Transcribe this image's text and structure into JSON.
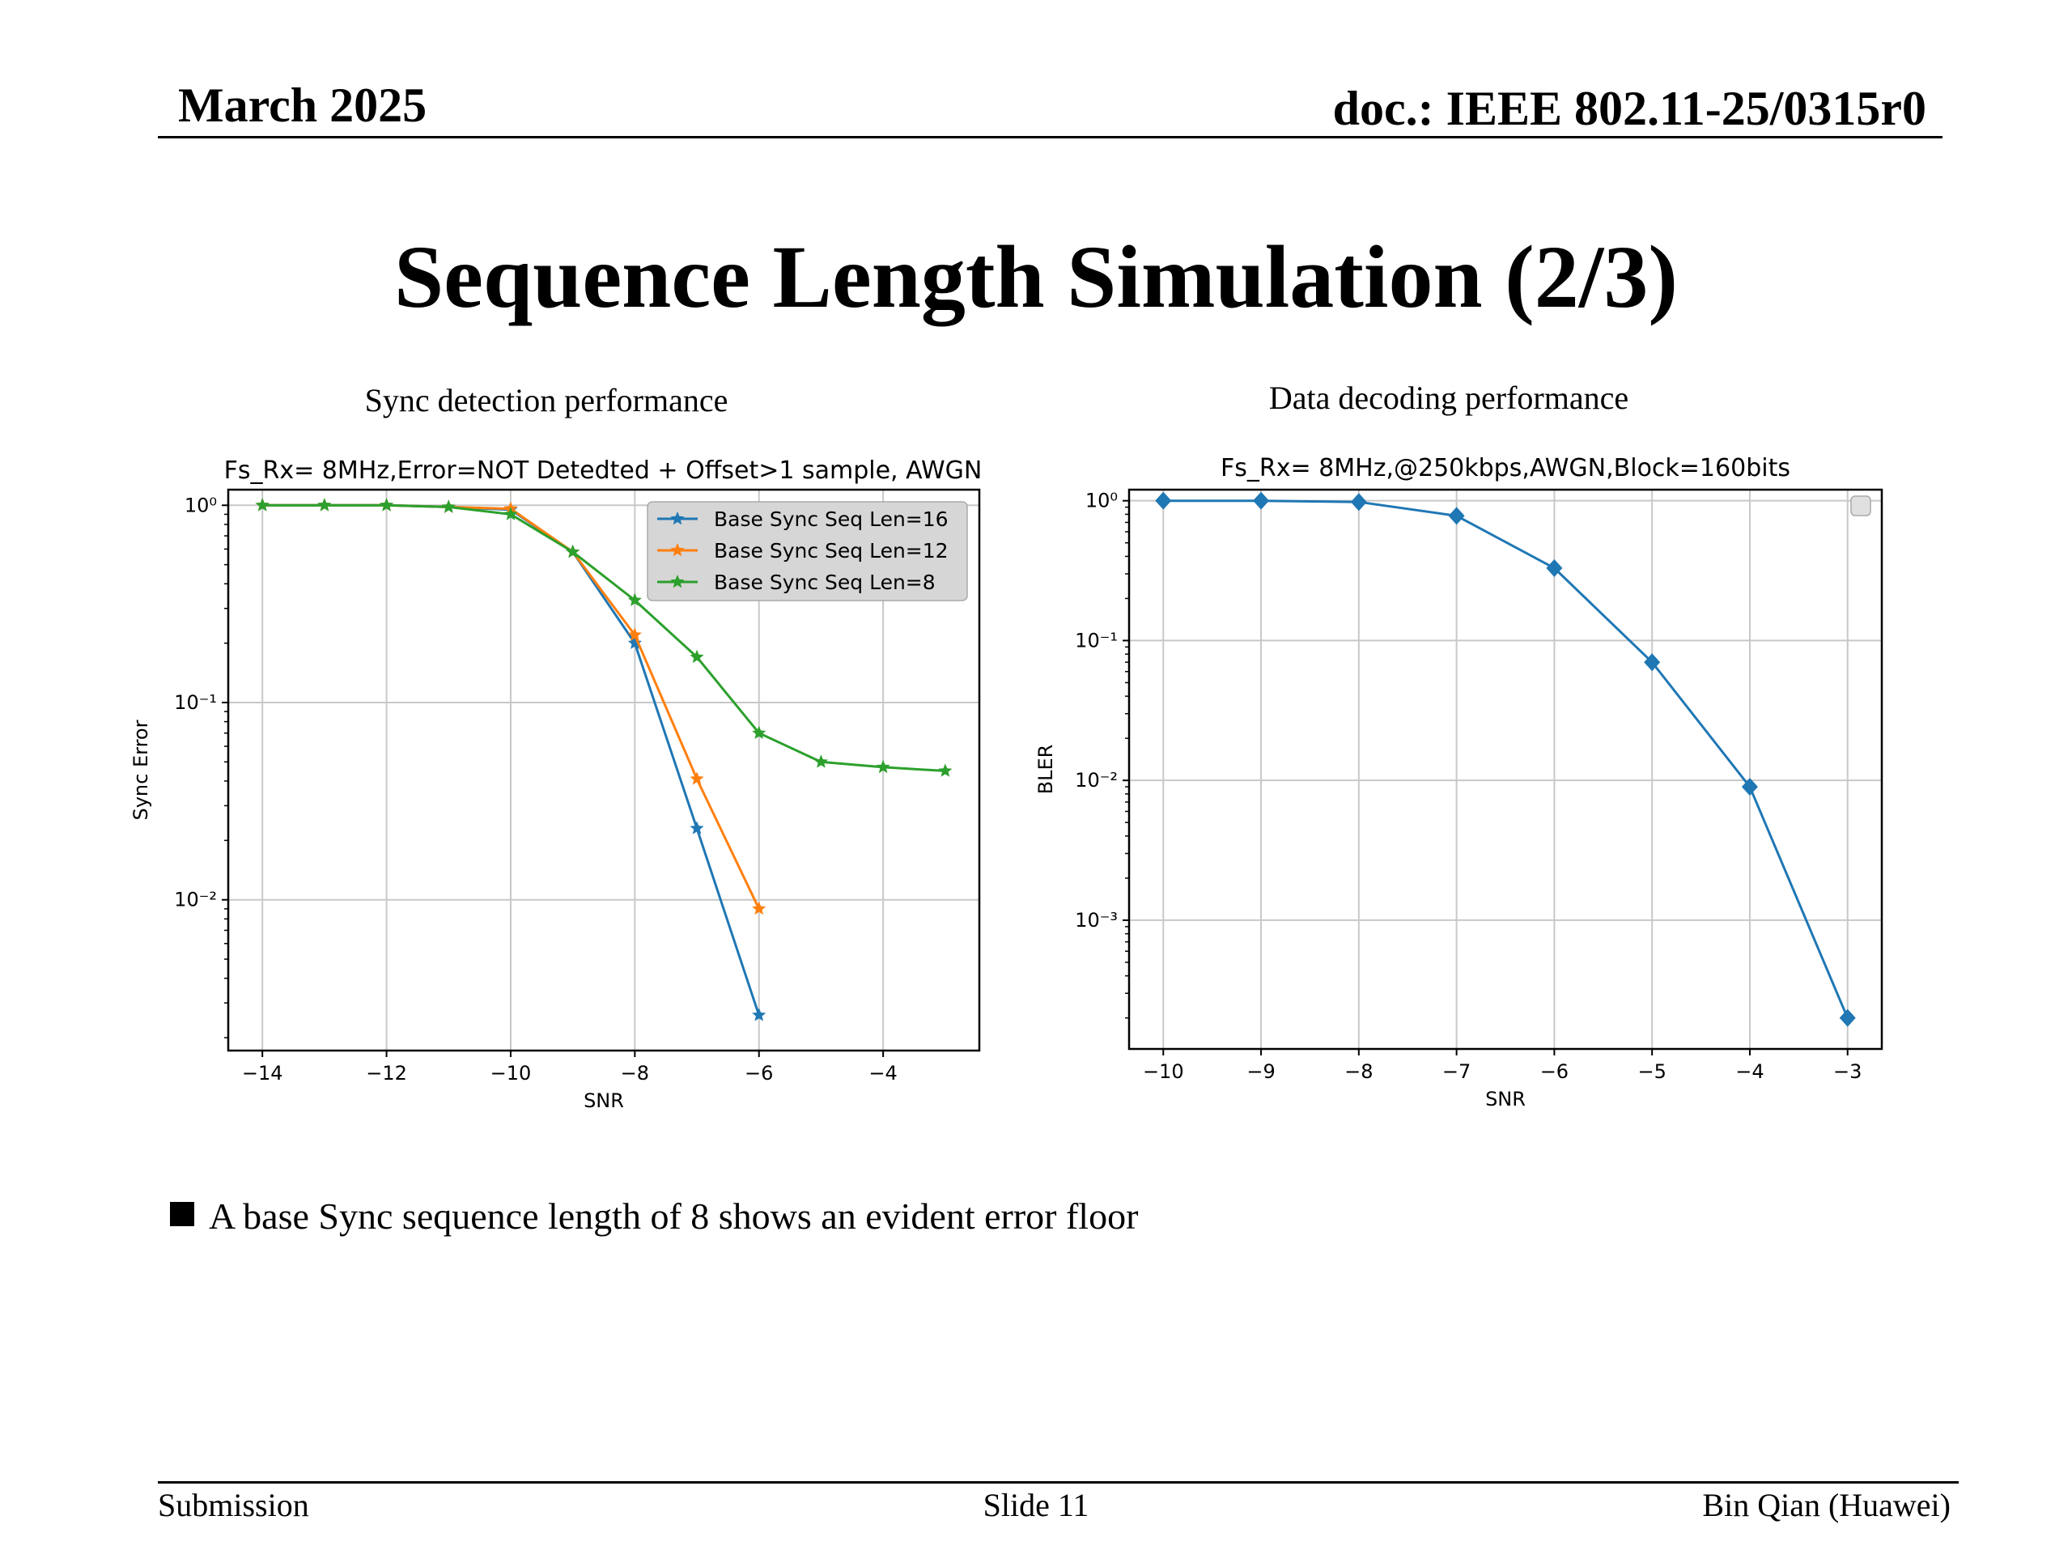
{
  "header": {
    "date": "March 2025",
    "doc_id": "doc.: IEEE 802.11-25/0315r0"
  },
  "title": "Sequence Length Simulation (2/3)",
  "captions": {
    "left": "Sync detection performance",
    "right": "Data decoding performance"
  },
  "bullet": "A base Sync sequence length of 8 shows an evident error floor",
  "footer": {
    "left": "Submission",
    "center": "Slide 11",
    "right": "Bin Qian (Huawei)"
  },
  "chart_data": [
    {
      "type": "line",
      "title": "Fs_Rx= 8MHz,Error=NOT Detedted + Offset>1 sample, AWGN",
      "xlabel": "SNR",
      "ylabel": "Sync Error",
      "yscale": "log",
      "xlim": [
        -14.55,
        -2.45
      ],
      "ylim": [
        0.00172,
        1.2
      ],
      "xticks": [
        "−14",
        "−12",
        "−10",
        "−8",
        "−6",
        "−4"
      ],
      "yticks": [
        "10⁰",
        "10⁻¹",
        "10⁻²"
      ],
      "grid": true,
      "legend_position": "top-right",
      "series": [
        {
          "name": "Base Sync Seq Len=16",
          "color": "#1f77b4",
          "marker": "star",
          "x": [
            -14,
            -13,
            -12,
            -11,
            -10,
            -9,
            -8,
            -7,
            -6
          ],
          "y": [
            1.0,
            1.0,
            1.0,
            0.98,
            0.95,
            0.58,
            0.2,
            0.023,
            0.0026
          ]
        },
        {
          "name": "Base Sync Seq Len=12",
          "color": "#ff7f0e",
          "marker": "star",
          "x": [
            -14,
            -13,
            -12,
            -11,
            -10,
            -9,
            -8,
            -7,
            -6
          ],
          "y": [
            1.0,
            1.0,
            1.0,
            0.98,
            0.96,
            0.58,
            0.22,
            0.041,
            0.009
          ]
        },
        {
          "name": "Base Sync Seq Len=8",
          "color": "#2ca02c",
          "marker": "star",
          "x": [
            -14,
            -13,
            -12,
            -11,
            -10,
            -9,
            -8,
            -7,
            -6,
            -5,
            -4,
            -3
          ],
          "y": [
            1.0,
            1.0,
            1.0,
            0.98,
            0.9,
            0.58,
            0.33,
            0.17,
            0.07,
            0.05,
            0.047,
            0.045
          ]
        }
      ]
    },
    {
      "type": "line",
      "title": "Fs_Rx= 8MHz,@250kbps,AWGN,Block=160bits",
      "xlabel": "SNR",
      "ylabel": "BLER",
      "yscale": "log",
      "xlim": [
        -10.35,
        -2.65
      ],
      "ylim": [
        0.00012,
        1.2
      ],
      "xticks": [
        "−10",
        "−9",
        "−8",
        "−7",
        "−6",
        "−5",
        "−4",
        "−3"
      ],
      "yticks": [
        "10⁰",
        "10⁻¹",
        "10⁻²",
        "10⁻³"
      ],
      "grid": true,
      "legend_position": "top-right",
      "series": [
        {
          "color": "#1f77b4",
          "marker": "diamond",
          "x": [
            -10,
            -9,
            -8,
            -7,
            -6,
            -5,
            -4,
            -3
          ],
          "y": [
            1.0,
            1.0,
            0.98,
            0.78,
            0.33,
            0.07,
            0.009,
            0.0002
          ]
        }
      ]
    }
  ]
}
